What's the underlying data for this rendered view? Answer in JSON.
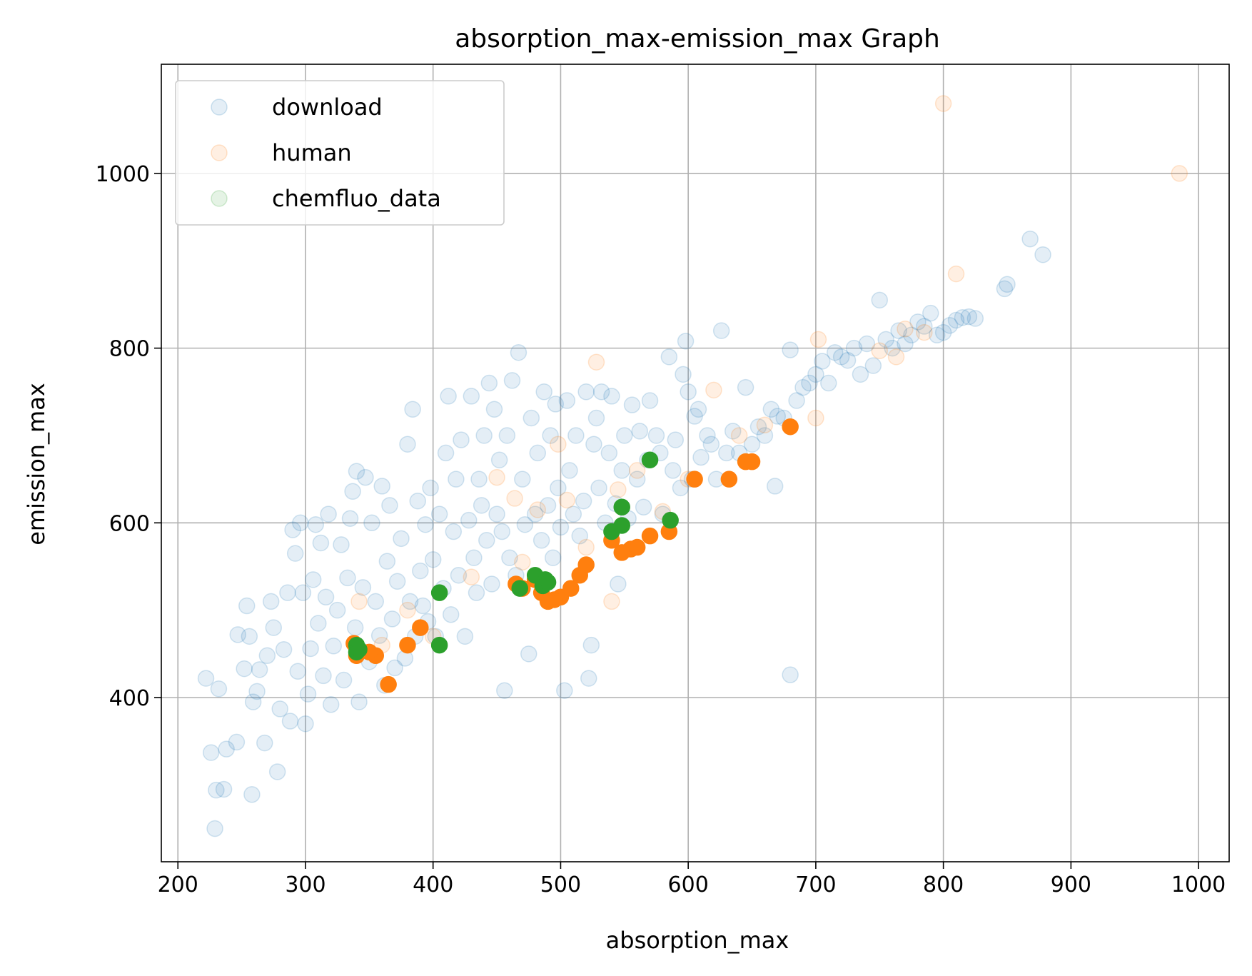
{
  "chart_data": {
    "type": "scatter",
    "title": "absorption_max-emission_max Graph",
    "xlabel": "absorption_max",
    "ylabel": "emission_max",
    "xlim": [
      187,
      1024
    ],
    "ylim": [
      212,
      1125
    ],
    "xticks": [
      200,
      300,
      400,
      500,
      600,
      700,
      800,
      900,
      1000
    ],
    "yticks": [
      400,
      600,
      800,
      1000
    ],
    "grid": true,
    "legend_position": "upper-left",
    "series": [
      {
        "name": "download",
        "color": "#1f77b4",
        "alpha": 0.12,
        "points": [
          [
            222,
            422
          ],
          [
            232,
            410
          ],
          [
            226,
            337
          ],
          [
            238,
            341
          ],
          [
            230,
            294
          ],
          [
            236,
            295
          ],
          [
            229,
            250
          ],
          [
            246,
            349
          ],
          [
            247,
            472
          ],
          [
            252,
            433
          ],
          [
            254,
            505
          ],
          [
            256,
            470
          ],
          [
            258,
            289
          ],
          [
            259,
            395
          ],
          [
            262,
            407
          ],
          [
            264,
            432
          ],
          [
            268,
            348
          ],
          [
            270,
            448
          ],
          [
            273,
            510
          ],
          [
            275,
            480
          ],
          [
            278,
            315
          ],
          [
            280,
            387
          ],
          [
            283,
            455
          ],
          [
            286,
            520
          ],
          [
            288,
            373
          ],
          [
            290,
            592
          ],
          [
            292,
            565
          ],
          [
            294,
            430
          ],
          [
            296,
            600
          ],
          [
            298,
            520
          ],
          [
            300,
            370
          ],
          [
            302,
            404
          ],
          [
            304,
            456
          ],
          [
            306,
            535
          ],
          [
            308,
            598
          ],
          [
            310,
            485
          ],
          [
            312,
            577
          ],
          [
            314,
            425
          ],
          [
            316,
            515
          ],
          [
            318,
            610
          ],
          [
            320,
            392
          ],
          [
            322,
            459
          ],
          [
            325,
            500
          ],
          [
            328,
            575
          ],
          [
            330,
            420
          ],
          [
            333,
            537
          ],
          [
            335,
            605
          ],
          [
            337,
            636
          ],
          [
            339,
            480
          ],
          [
            340,
            659
          ],
          [
            342,
            395
          ],
          [
            345,
            526
          ],
          [
            347,
            652
          ],
          [
            350,
            441
          ],
          [
            352,
            600
          ],
          [
            355,
            510
          ],
          [
            358,
            471
          ],
          [
            360,
            642
          ],
          [
            362,
            414
          ],
          [
            364,
            556
          ],
          [
            366,
            620
          ],
          [
            368,
            490
          ],
          [
            370,
            434
          ],
          [
            372,
            533
          ],
          [
            375,
            582
          ],
          [
            378,
            445
          ],
          [
            380,
            690
          ],
          [
            382,
            510
          ],
          [
            384,
            730
          ],
          [
            386,
            470
          ],
          [
            388,
            625
          ],
          [
            390,
            545
          ],
          [
            392,
            505
          ],
          [
            394,
            598
          ],
          [
            396,
            487
          ],
          [
            398,
            640
          ],
          [
            400,
            558
          ],
          [
            402,
            470
          ],
          [
            405,
            610
          ],
          [
            408,
            525
          ],
          [
            410,
            680
          ],
          [
            412,
            745
          ],
          [
            414,
            495
          ],
          [
            416,
            590
          ],
          [
            418,
            650
          ],
          [
            420,
            540
          ],
          [
            422,
            695
          ],
          [
            425,
            470
          ],
          [
            428,
            603
          ],
          [
            430,
            745
          ],
          [
            432,
            560
          ],
          [
            434,
            520
          ],
          [
            436,
            650
          ],
          [
            438,
            620
          ],
          [
            440,
            700
          ],
          [
            442,
            580
          ],
          [
            444,
            760
          ],
          [
            446,
            530
          ],
          [
            448,
            730
          ],
          [
            450,
            610
          ],
          [
            452,
            672
          ],
          [
            454,
            590
          ],
          [
            456,
            408
          ],
          [
            458,
            700
          ],
          [
            460,
            560
          ],
          [
            462,
            763
          ],
          [
            465,
            540
          ],
          [
            467,
            795
          ],
          [
            470,
            650
          ],
          [
            472,
            598
          ],
          [
            475,
            450
          ],
          [
            477,
            720
          ],
          [
            480,
            610
          ],
          [
            482,
            680
          ],
          [
            485,
            580
          ],
          [
            487,
            750
          ],
          [
            490,
            620
          ],
          [
            492,
            700
          ],
          [
            494,
            560
          ],
          [
            496,
            736
          ],
          [
            498,
            640
          ],
          [
            500,
            595
          ],
          [
            503,
            408
          ],
          [
            505,
            740
          ],
          [
            507,
            660
          ],
          [
            510,
            610
          ],
          [
            512,
            700
          ],
          [
            515,
            585
          ],
          [
            518,
            625
          ],
          [
            520,
            750
          ],
          [
            522,
            422
          ],
          [
            524,
            460
          ],
          [
            526,
            690
          ],
          [
            528,
            720
          ],
          [
            530,
            640
          ],
          [
            532,
            750
          ],
          [
            535,
            600
          ],
          [
            538,
            680
          ],
          [
            540,
            745
          ],
          [
            543,
            622
          ],
          [
            545,
            530
          ],
          [
            548,
            660
          ],
          [
            550,
            700
          ],
          [
            553,
            605
          ],
          [
            556,
            735
          ],
          [
            560,
            650
          ],
          [
            562,
            705
          ],
          [
            565,
            618
          ],
          [
            568,
            672
          ],
          [
            570,
            740
          ],
          [
            575,
            700
          ],
          [
            578,
            680
          ],
          [
            580,
            610
          ],
          [
            585,
            790
          ],
          [
            588,
            660
          ],
          [
            590,
            695
          ],
          [
            594,
            640
          ],
          [
            596,
            770
          ],
          [
            598,
            808
          ],
          [
            600,
            750
          ],
          [
            603,
            650
          ],
          [
            605,
            722
          ],
          [
            608,
            730
          ],
          [
            610,
            675
          ],
          [
            615,
            700
          ],
          [
            618,
            690
          ],
          [
            622,
            650
          ],
          [
            626,
            820
          ],
          [
            630,
            680
          ],
          [
            635,
            705
          ],
          [
            640,
            680
          ],
          [
            645,
            755
          ],
          [
            650,
            690
          ],
          [
            655,
            710
          ],
          [
            660,
            700
          ],
          [
            665,
            730
          ],
          [
            668,
            642
          ],
          [
            670,
            722
          ],
          [
            675,
            720
          ],
          [
            680,
            426
          ],
          [
            680,
            798
          ],
          [
            685,
            740
          ],
          [
            690,
            755
          ],
          [
            695,
            760
          ],
          [
            700,
            770
          ],
          [
            705,
            785
          ],
          [
            710,
            760
          ],
          [
            715,
            795
          ],
          [
            720,
            790
          ],
          [
            725,
            786
          ],
          [
            730,
            800
          ],
          [
            735,
            770
          ],
          [
            740,
            805
          ],
          [
            745,
            780
          ],
          [
            750,
            855
          ],
          [
            755,
            810
          ],
          [
            760,
            800
          ],
          [
            765,
            820
          ],
          [
            770,
            805
          ],
          [
            775,
            815
          ],
          [
            780,
            830
          ],
          [
            785,
            825
          ],
          [
            790,
            840
          ],
          [
            795,
            815
          ],
          [
            800,
            818
          ],
          [
            805,
            826
          ],
          [
            810,
            832
          ],
          [
            815,
            835
          ],
          [
            820,
            836
          ],
          [
            825,
            834
          ],
          [
            848,
            868
          ],
          [
            850,
            873
          ],
          [
            868,
            925
          ],
          [
            878,
            907
          ]
        ]
      },
      {
        "name": "human",
        "color": "#ff7f0e",
        "alpha": 0.12,
        "points": [
          [
            800,
            1080
          ],
          [
            985,
            1000
          ],
          [
            810,
            885
          ],
          [
            528,
            784
          ],
          [
            620,
            752
          ],
          [
            702,
            810
          ],
          [
            750,
            797
          ],
          [
            763,
            790
          ],
          [
            770,
            822
          ],
          [
            785,
            818
          ],
          [
            450,
            652
          ],
          [
            464,
            628
          ],
          [
            520,
            572
          ],
          [
            482,
            615
          ],
          [
            498,
            690
          ],
          [
            540,
            510
          ],
          [
            560,
            660
          ],
          [
            600,
            650
          ],
          [
            380,
            500
          ],
          [
            342,
            510
          ],
          [
            360,
            460
          ],
          [
            400,
            470
          ],
          [
            430,
            538
          ],
          [
            470,
            555
          ],
          [
            505,
            626
          ],
          [
            545,
            638
          ],
          [
            580,
            613
          ],
          [
            640,
            700
          ],
          [
            660,
            712
          ],
          [
            700,
            720
          ]
        ]
      },
      {
        "name": "human",
        "color": "#ff7f0e",
        "alpha": 1.0,
        "points": [
          [
            680,
            710
          ],
          [
            645,
            670
          ],
          [
            632,
            650
          ],
          [
            605,
            650
          ],
          [
            570,
            585
          ],
          [
            555,
            570
          ],
          [
            548,
            566
          ],
          [
            540,
            580
          ],
          [
            520,
            552
          ],
          [
            508,
            525
          ],
          [
            500,
            515
          ],
          [
            495,
            512
          ],
          [
            490,
            510
          ],
          [
            485,
            520
          ],
          [
            480,
            535
          ],
          [
            470,
            525
          ],
          [
            465,
            530
          ],
          [
            390,
            480
          ],
          [
            380,
            460
          ],
          [
            365,
            415
          ],
          [
            355,
            448
          ],
          [
            350,
            452
          ],
          [
            340,
            448
          ],
          [
            338,
            462
          ],
          [
            650,
            670
          ],
          [
            585,
            590
          ],
          [
            560,
            572
          ],
          [
            515,
            540
          ]
        ]
      },
      {
        "name": "chemfluo_data",
        "color": "#2ca02c",
        "alpha": 1.0,
        "points": [
          [
            570,
            672
          ],
          [
            548,
            618
          ],
          [
            540,
            590
          ],
          [
            548,
            597
          ],
          [
            586,
            603
          ],
          [
            480,
            540
          ],
          [
            488,
            535
          ],
          [
            486,
            528
          ],
          [
            490,
            532
          ],
          [
            468,
            525
          ],
          [
            405,
            520
          ],
          [
            405,
            460
          ],
          [
            340,
            460
          ],
          [
            340,
            452
          ],
          [
            342,
            455
          ]
        ]
      }
    ],
    "legend_entries": [
      {
        "label": "download",
        "color": "#1f77b4"
      },
      {
        "label": "human",
        "color": "#ff7f0e"
      },
      {
        "label": "chemfluo_data",
        "color": "#2ca02c"
      }
    ]
  }
}
